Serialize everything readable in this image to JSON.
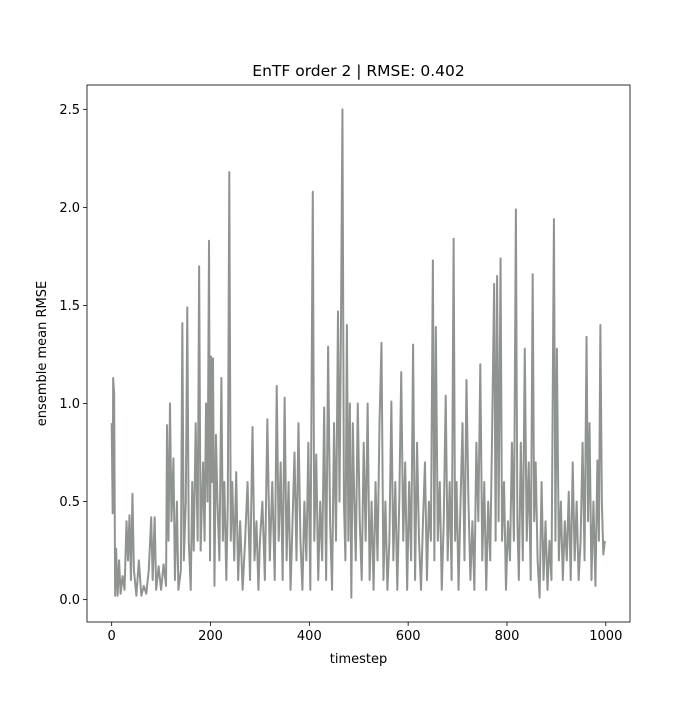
{
  "chart_data": {
    "type": "line",
    "title": "EnTF order 2 | RMSE: 0.402",
    "xlabel": "timestep",
    "ylabel": "ensemble mean RMSE",
    "xlim": [
      -49.95,
      1048.95
    ],
    "ylim": [
      -0.114,
      2.624
    ],
    "xticks": [
      0,
      200,
      400,
      600,
      800,
      1000
    ],
    "yticks": [
      {
        "value": 0,
        "label": "0.0"
      },
      0.5,
      {
        "value": 1,
        "label": "1.0"
      },
      1.5,
      {
        "value": 2,
        "label": "2.0"
      },
      2.5
    ],
    "series": [
      {
        "color": "#909490",
        "x": [
          0,
          2,
          3,
          5,
          7,
          9,
          12,
          15,
          18,
          22,
          26,
          30,
          33,
          36,
          39,
          42,
          45,
          50,
          55,
          60,
          65,
          70,
          75,
          80,
          83,
          87,
          90,
          95,
          100,
          105,
          110,
          112,
          115,
          118,
          121,
          125,
          128,
          132,
          135,
          140,
          143,
          146,
          150,
          153,
          156,
          160,
          163,
          166,
          170,
          174,
          177,
          180,
          185,
          188,
          191,
          194,
          197,
          199,
          201,
          203,
          205,
          208,
          211,
          214,
          218,
          222,
          225,
          228,
          232,
          235,
          238,
          241,
          244,
          248,
          252,
          256,
          260,
          265,
          270,
          275,
          280,
          285,
          289,
          293,
          297,
          300,
          305,
          310,
          315,
          320,
          325,
          330,
          334,
          338,
          342,
          346,
          350,
          354,
          358,
          362,
          366,
          370,
          374,
          378,
          382,
          386,
          390,
          394,
          398,
          402,
          407,
          410,
          414,
          418,
          422,
          426,
          430,
          434,
          438,
          442,
          446,
          450,
          454,
          458,
          461,
          464,
          467,
          470,
          473,
          476,
          479,
          482,
          485,
          488,
          491,
          494,
          498,
          502,
          506,
          510,
          514,
          518,
          522,
          526,
          530,
          534,
          538,
          542,
          546,
          550,
          554,
          558,
          562,
          566,
          570,
          574,
          578,
          582,
          586,
          590,
          594,
          598,
          602,
          606,
          610,
          614,
          618,
          622,
          626,
          630,
          634,
          638,
          642,
          646,
          650,
          653,
          656,
          660,
          664,
          668,
          672,
          676,
          680,
          684,
          688,
          692,
          695,
          698,
          702,
          706,
          710,
          714,
          718,
          722,
          726,
          730,
          734,
          738,
          742,
          746,
          750,
          754,
          758,
          762,
          766,
          770,
          774,
          777,
          780,
          783,
          787,
          790,
          794,
          798,
          802,
          806,
          810,
          814,
          818,
          821,
          824,
          828,
          832,
          836,
          840,
          844,
          848,
          852,
          855,
          858,
          862,
          866,
          870,
          874,
          878,
          882,
          886,
          890,
          895,
          898,
          901,
          905,
          909,
          913,
          917,
          921,
          925,
          929,
          933,
          937,
          941,
          945,
          949,
          953,
          957,
          961,
          964,
          967,
          971,
          975,
          979,
          983,
          986,
          989,
          992,
          995,
          998
        ],
        "values": [
          0.9,
          0.44,
          1.13,
          1.05,
          0.02,
          0.26,
          0.02,
          0.2,
          0.03,
          0.12,
          0.05,
          0.4,
          0.2,
          0.43,
          0.1,
          0.54,
          0.15,
          0.02,
          0.2,
          0.02,
          0.07,
          0.03,
          0.15,
          0.42,
          0.1,
          0.42,
          0.05,
          0.17,
          0.05,
          0.18,
          0.07,
          0.89,
          0.3,
          1.0,
          0.4,
          0.72,
          0.1,
          0.5,
          0.05,
          0.15,
          1.41,
          0.2,
          0.5,
          1.49,
          0.3,
          0.05,
          0.6,
          0.25,
          0.9,
          0.3,
          1.7,
          0.25,
          0.7,
          0.3,
          1.0,
          0.5,
          1.83,
          0.2,
          1.24,
          0.6,
          1.23,
          0.07,
          0.84,
          0.5,
          0.2,
          1.13,
          0.3,
          0.6,
          0.1,
          0.5,
          2.18,
          0.3,
          0.6,
          0.2,
          0.65,
          0.1,
          0.4,
          0.05,
          0.3,
          0.6,
          0.1,
          0.88,
          0.2,
          0.4,
          0.05,
          0.3,
          0.5,
          0.1,
          0.92,
          0.2,
          0.6,
          0.1,
          1.09,
          0.3,
          0.7,
          0.1,
          1.03,
          0.2,
          0.6,
          0.05,
          0.4,
          0.75,
          0.2,
          0.9,
          0.3,
          0.05,
          0.5,
          0.2,
          0.8,
          0.05,
          2.08,
          0.3,
          0.74,
          0.1,
          0.5,
          0.2,
          0.98,
          0.1,
          1.29,
          0.4,
          0.05,
          0.9,
          0.3,
          1.47,
          0.5,
          1.39,
          2.5,
          0.5,
          0.2,
          1.4,
          0.3,
          1.0,
          0.01,
          0.9,
          0.5,
          0.2,
          1.0,
          0.4,
          0.1,
          0.8,
          0.3,
          1.0,
          0.1,
          0.5,
          0.05,
          0.6,
          0.2,
          0.9,
          1.31,
          0.1,
          0.5,
          0.05,
          0.3,
          1.01,
          0.2,
          0.6,
          0.05,
          0.5,
          1.16,
          0.3,
          0.7,
          0.05,
          0.6,
          0.2,
          1.3,
          0.1,
          0.8,
          0.3,
          0.05,
          0.4,
          0.7,
          0.1,
          0.5,
          0.3,
          1.73,
          0.2,
          1.39,
          0.3,
          0.6,
          0.05,
          0.4,
          1.04,
          0.2,
          0.6,
          0.1,
          1.84,
          0.3,
          0.6,
          0.05,
          0.5,
          0.9,
          0.2,
          1.12,
          0.5,
          0.1,
          0.4,
          0.05,
          0.8,
          0.4,
          1.2,
          0.2,
          0.6,
          0.05,
          0.5,
          0.2,
          0.87,
          1.61,
          0.3,
          1.65,
          0.4,
          1.74,
          0.3,
          0.6,
          0.05,
          0.4,
          0.2,
          0.8,
          0.3,
          1.99,
          0.4,
          0.1,
          0.8,
          0.2,
          1.28,
          0.3,
          0.7,
          0.1,
          1.66,
          0.4,
          0.7,
          0.2,
          0.01,
          0.6,
          0.1,
          0.4,
          0.05,
          0.3,
          0.1,
          1.94,
          0.3,
          1.28,
          0.2,
          0.5,
          0.1,
          0.4,
          0.2,
          0.55,
          0.1,
          0.7,
          0.2,
          0.5,
          0.1,
          0.3,
          0.8,
          0.2,
          1.34,
          0.4,
          0.9,
          0.1,
          0.5,
          0.07,
          0.71,
          0.3,
          1.4,
          0.5,
          0.23,
          0.3
        ]
      }
    ]
  }
}
